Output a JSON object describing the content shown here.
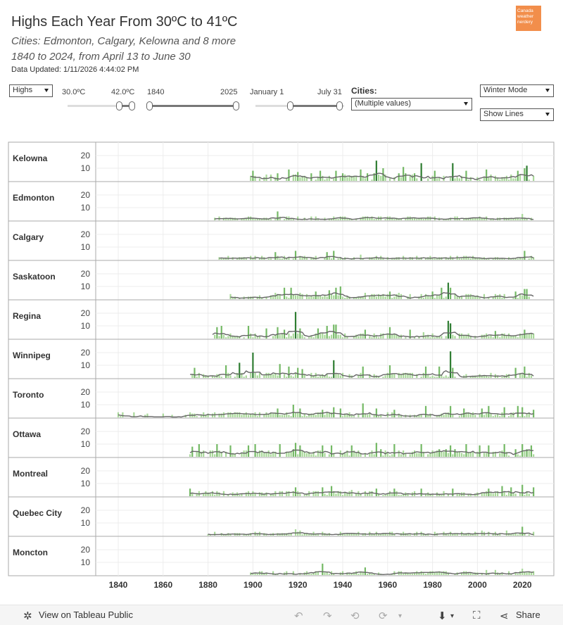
{
  "header": {
    "title": "Highs Each Year From 30ºC to 41ºC",
    "subtitle1": "Cities: Edmonton, Calgary, Kelowna and 8 more",
    "subtitle2": "1840 to 2024, from April 13 to June 30",
    "updated": "Data Updated: 1/11/2026 4:44:02 PM",
    "logo_text": "Canada weather nerdery"
  },
  "controls": {
    "measure": "Highs",
    "temp_min": "30.0ºC",
    "temp_max": "42.0ºC",
    "year_min": "1840",
    "year_max": "2025",
    "date_min": "January 1",
    "date_max": "July 31",
    "cities_label": "Cities:",
    "cities_value": "(Multiple values)",
    "mode": "Winter Mode",
    "lines": "Show Lines"
  },
  "colors": {
    "bar_light": "#a9d99a",
    "bar_mid": "#74b965",
    "bar_dark": "#2f7d32",
    "line": "#666666",
    "grid": "#ececec",
    "axis": "#aaaaaa"
  },
  "footer": {
    "view_label": "View on Tableau Public",
    "share_label": "Share"
  },
  "chart_data": {
    "type": "bar",
    "title": "Highs Each Year From 30ºC to 41ºC",
    "xlabel": "",
    "ylabel": "",
    "x_ticks": [
      1840,
      1860,
      1880,
      1900,
      1920,
      1940,
      1960,
      1980,
      2000,
      2020
    ],
    "y_ticks": [
      10,
      20
    ],
    "xlim": [
      1830,
      2030
    ],
    "ylim": [
      0,
      25
    ],
    "grid": true,
    "overlay": "smoothed line",
    "rows": [
      {
        "city": "Kelowna",
        "start": 1899,
        "spikes": {
          "1900": 8,
          "1916": 9,
          "1920": 7,
          "1930": 8,
          "1937": 8,
          "1948": 9,
          "1955": 16,
          "1958": 10,
          "1967": 11,
          "1975": 14,
          "1981": 8,
          "1989": 14,
          "1995": 8,
          "2004": 9,
          "2018": 8,
          "2021": 10,
          "2022": 12
        },
        "base": 4
      },
      {
        "city": "Edmonton",
        "start": 1883,
        "spikes": {
          "1911": 7,
          "1920": 3,
          "1936": 3,
          "1950": 3,
          "1961": 3,
          "1978": 3,
          "1991": 3,
          "2000": 2,
          "2020": 5
        },
        "base": 2
      },
      {
        "city": "Calgary",
        "start": 1885,
        "spikes": {
          "1910": 6,
          "1919": 7,
          "1933": 6,
          "1936": 7,
          "1948": 4,
          "1967": 3,
          "1979": 3,
          "1998": 3,
          "2021": 7
        },
        "base": 2
      },
      {
        "city": "Saskatoon",
        "start": 1890,
        "spikes": {
          "1903": 3,
          "1910": 5,
          "1914": 9,
          "1917": 9,
          "1921": 5,
          "1928": 6,
          "1934": 7,
          "1937": 9,
          "1939": 10,
          "1950": 5,
          "1961": 6,
          "1965": 5,
          "1980": 6,
          "1984": 9,
          "1987": 13,
          "1988": 9,
          "2017": 6,
          "2021": 8,
          "2022": 8
        },
        "base": 3
      },
      {
        "city": "Regina",
        "start": 1882,
        "spikes": {
          "1884": 9,
          "1886": 10,
          "1898": 10,
          "1906": 8,
          "1911": 9,
          "1914": 7,
          "1919": 21,
          "1921": 8,
          "1929": 8,
          "1933": 10,
          "1936": 11,
          "1937": 11,
          "1950": 7,
          "1961": 9,
          "1970": 7,
          "1976": 5,
          "1987": 14,
          "1988": 12,
          "2008": 6,
          "2021": 7
        },
        "base": 3
      },
      {
        "city": "Winnipeg",
        "start": 1872,
        "spikes": {
          "1874": 8,
          "1888": 10,
          "1894": 12,
          "1900": 20,
          "1912": 11,
          "1916": 9,
          "1920": 8,
          "1922": 7,
          "1936": 14,
          "1949": 9,
          "1961": 10,
          "1977": 9,
          "1983": 9,
          "1988": 21,
          "1989": 8,
          "2017": 8,
          "2021": 9
        },
        "base": 3
      },
      {
        "city": "Toronto",
        "start": 1840,
        "spikes": {
          "1840": 4,
          "1860": 3,
          "1880": 3,
          "1900": 3,
          "1911": 7,
          "1918": 10,
          "1921": 7,
          "1931": 6,
          "1936": 8,
          "1939": 7,
          "1949": 11,
          "1955": 7,
          "1963": 6,
          "1977": 9,
          "1988": 9,
          "1994": 7,
          "2002": 7,
          "2005": 9,
          "2012": 8,
          "2018": 9,
          "2020": 8,
          "2025": 6
        },
        "base": 3
      },
      {
        "city": "Ottawa",
        "start": 1872,
        "spikes": {
          "1873": 8,
          "1876": 10,
          "1884": 10,
          "1890": 9,
          "1898": 9,
          "1901": 10,
          "1912": 10,
          "1919": 11,
          "1921": 9,
          "1931": 9,
          "1935": 9,
          "1944": 9,
          "1955": 11,
          "1963": 10,
          "1975": 10,
          "1988": 9,
          "1995": 10,
          "2001": 9,
          "2005": 9,
          "2012": 10,
          "2020": 10,
          "2024": 9
        },
        "base": 4
      },
      {
        "city": "Montreal",
        "start": 1872,
        "spikes": {
          "1872": 6,
          "1910": 4,
          "1919": 7,
          "1931": 7,
          "1935": 8,
          "1944": 5,
          "1955": 6,
          "1963": 6,
          "1975": 6,
          "1989": 6,
          "2005": 6,
          "2011": 8,
          "2015": 7,
          "2020": 9,
          "2025": 7
        },
        "base": 3
      },
      {
        "city": "Quebec City",
        "start": 1880,
        "spikes": {
          "1883": 3,
          "1903": 3,
          "1919": 5,
          "1921": 4,
          "1931": 3,
          "1955": 3,
          "1975": 3,
          "1988": 3,
          "2002": 4,
          "2013": 4,
          "2020": 7,
          "2025": 3
        },
        "base": 2
      },
      {
        "city": "Moncton",
        "start": 1899,
        "spikes": {
          "1931": 9,
          "1935": 3,
          "1950": 6,
          "1963": 3,
          "1975": 3,
          "1983": 3,
          "1994": 3,
          "2004": 4,
          "2008": 4,
          "2014": 3,
          "2020": 5,
          "2025": 3
        },
        "base": 2
      }
    ]
  }
}
